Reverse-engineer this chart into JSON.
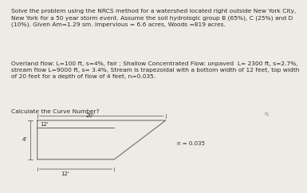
{
  "title_text": "Solve the problem using the NRCS method for a watershed located right outside New York City,\nNew York for a 50 year storm event. Assume the soil hydrologic group B (65%), C (25%) and D\n(10%). Given Am=1.29 sm. Impervious = 6.6 acres, Woods =819 acres.",
  "body_text": "Overland flow: L=100 ft, s=4%, fair ; Shallow Concentrated Flow: unpaved  L= 2300 ft, s=2.7%,\nstream flow L=9000 ft, s= 3.4%, Stream is trapezoidal with a bottom width of 12 feet, top width\nof 20 feet for a depth of flow of 4 feet, n=0.035.",
  "question_text": "Calculate the Curve Number?",
  "label_top": "20'",
  "label_inner": "12'",
  "label_depth": "4'",
  "label_bottom": "12'",
  "label_n": "n = 0.035",
  "bg_color": "#eeebe5",
  "text_color": "#2a2a2a",
  "line_color": "#666666",
  "font_size_body": 5.4,
  "font_size_label": 5.0,
  "font_size_question": 5.4
}
